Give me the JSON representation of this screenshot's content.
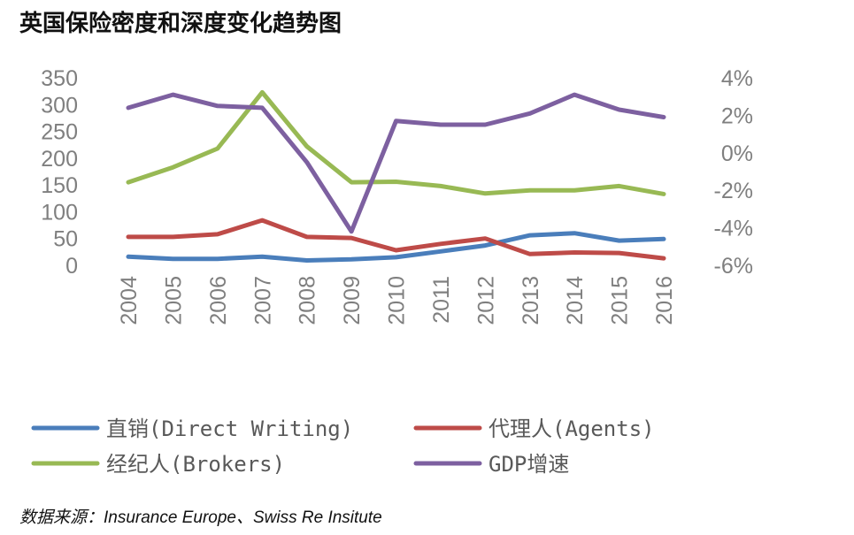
{
  "title": "英国保险密度和深度变化趋势图",
  "source": "数据来源：Insurance Europe、Swiss Re Insitute",
  "chart_data": {
    "type": "line",
    "title": "英国保险密度和深度变化趋势图",
    "categories": [
      "2004",
      "2005",
      "2006",
      "2007",
      "2008",
      "2009",
      "2010",
      "2011",
      "2012",
      "2013",
      "2014",
      "2015",
      "2016"
    ],
    "y_left": {
      "ylim": [
        0,
        350
      ],
      "ticks": [
        "0",
        "50",
        "100",
        "150",
        "200",
        "250",
        "300",
        "350"
      ]
    },
    "y_right": {
      "ylim": [
        -6,
        4
      ],
      "ticks": [
        "-6%",
        "-4%",
        "-2%",
        "0%",
        "2%",
        "4%"
      ]
    },
    "grid": false,
    "legend_position": "bottom",
    "series": [
      {
        "name": "直销(Direct Writing)",
        "axis": "left",
        "color": "#4a7ebb",
        "values": [
          16,
          12,
          12,
          16,
          9,
          11,
          15,
          26,
          37,
          56,
          60,
          46,
          49
        ]
      },
      {
        "name": "代理人(Agents)",
        "axis": "left",
        "color": "#be4b48",
        "values": [
          53,
          53,
          58,
          84,
          53,
          51,
          28,
          40,
          50,
          21,
          24,
          23,
          13
        ]
      },
      {
        "name": "经纪人(Brokers)",
        "axis": "left",
        "color": "#98b954",
        "values": [
          155,
          183,
          218,
          323,
          222,
          155,
          156,
          148,
          134,
          140,
          140,
          148,
          133
        ]
      },
      {
        "name": "GDP增速",
        "axis": "right",
        "color": "#7d60a0",
        "values": [
          2.4,
          3.1,
          2.5,
          2.4,
          -0.5,
          -4.2,
          1.7,
          1.5,
          1.5,
          2.1,
          3.1,
          2.3,
          1.9
        ]
      }
    ]
  }
}
